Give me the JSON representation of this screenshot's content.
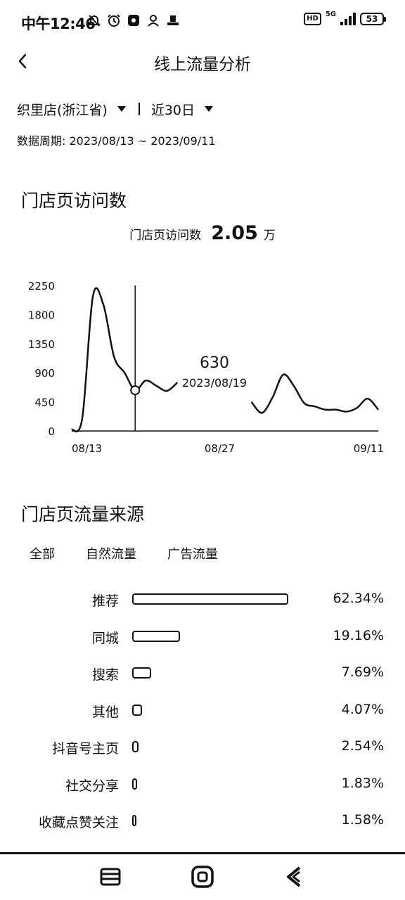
{
  "status_bar": {
    "time": "中午12:46",
    "hd": "HD",
    "network": "5G",
    "battery": "53"
  },
  "header": {
    "title": "线上流量分析"
  },
  "filters": {
    "store": "织里店(浙江省)",
    "range": "近30日",
    "period": "数据周期: 2023/08/13 ~ 2023/09/11"
  },
  "visits": {
    "section_title": "门店页访问数",
    "summary_label": "门店页访问数",
    "summary_value": "2.05",
    "summary_unit": "万",
    "tooltip_value": "630",
    "tooltip_date": "2023/08/19"
  },
  "chart_data": {
    "type": "line",
    "x_tick_labels": [
      "08/13",
      "08/27",
      "09/11"
    ],
    "y_tick_labels": [
      "0",
      "450",
      "900",
      "1350",
      "1800",
      "2250"
    ],
    "ylim": [
      0,
      2250
    ],
    "x": [
      "08/13",
      "08/14",
      "08/15",
      "08/16",
      "08/17",
      "08/18",
      "08/19",
      "08/20",
      "08/21",
      "08/22",
      "08/23",
      "08/24",
      "08/25",
      "08/26",
      "08/27",
      "08/28",
      "08/29",
      "08/30",
      "08/31",
      "09/01",
      "09/02",
      "09/03",
      "09/04",
      "09/05",
      "09/06",
      "09/07",
      "09/08",
      "09/09",
      "09/10",
      "09/11"
    ],
    "series": [
      {
        "values": [
          20,
          200,
          2080,
          1950,
          1150,
          900,
          630,
          780,
          700,
          620,
          750,
          null,
          null,
          null,
          null,
          null,
          null,
          450,
          280,
          520,
          870,
          700,
          430,
          380,
          330,
          330,
          300,
          360,
          500,
          330
        ]
      }
    ],
    "selected_index": 6,
    "grid": false
  },
  "sources": {
    "section_title": "门店页流量来源",
    "tabs": [
      "全部",
      "自然流量",
      "广告流量"
    ],
    "items": [
      {
        "label": "推荐",
        "pct": "62.34%",
        "value": 62.34
      },
      {
        "label": "同城",
        "pct": "19.16%",
        "value": 19.16
      },
      {
        "label": "搜索",
        "pct": "7.69%",
        "value": 7.69
      },
      {
        "label": "其他",
        "pct": "4.07%",
        "value": 4.07
      },
      {
        "label": "抖音号主页",
        "pct": "2.54%",
        "value": 2.54
      },
      {
        "label": "社交分享",
        "pct": "1.83%",
        "value": 1.83
      },
      {
        "label": "收藏点赞关注",
        "pct": "1.58%",
        "value": 1.58
      }
    ]
  },
  "icons": {
    "back": "chevron-left-icon",
    "menu": "menu-icon",
    "home": "home-icon",
    "back_nav": "back-icon"
  }
}
